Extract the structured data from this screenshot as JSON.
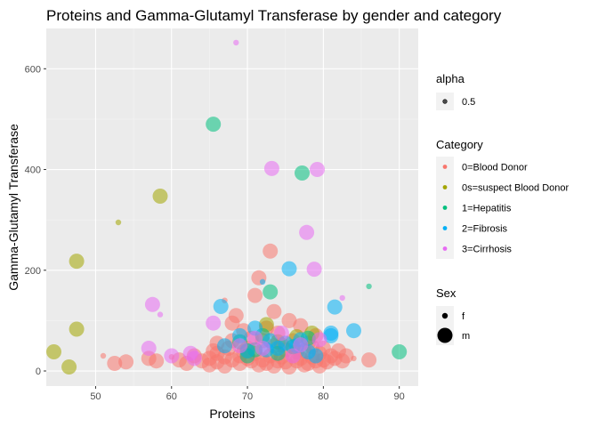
{
  "chart_data": {
    "type": "scatter",
    "title": "Proteins and Gamma-Glutamyl Transferase by gender and category",
    "xlabel": "Proteins",
    "ylabel": "Gamma-Glutamyl Transferase",
    "xlim": [
      43.5,
      92.5
    ],
    "ylim": [
      -30,
      680
    ],
    "x_ticks": [
      50,
      60,
      70,
      80,
      90
    ],
    "y_ticks": [
      0,
      200,
      400,
      600
    ],
    "x_tick_labels": [
      "50",
      "60",
      "70",
      "80",
      "90"
    ],
    "y_tick_labels": [
      "0",
      "200",
      "400",
      "600"
    ],
    "grid": true,
    "legends": {
      "alpha": {
        "title": "alpha",
        "entries": [
          "0.5"
        ]
      },
      "category": {
        "title": "Category",
        "entries": [
          {
            "label": "0=Blood Donor",
            "color": "#F8766D"
          },
          {
            "label": "0s=suspect Blood Donor",
            "color": "#A3A500"
          },
          {
            "label": "1=Hepatitis",
            "color": "#00BF7D"
          },
          {
            "label": "2=Fibrosis",
            "color": "#00B0F6"
          },
          {
            "label": "3=Cirrhosis",
            "color": "#E76BF3"
          }
        ]
      },
      "sex": {
        "title": "Sex",
        "entries": [
          "f",
          "m"
        ]
      }
    },
    "series": [
      {
        "category": "0=Blood Donor",
        "color": "#F8766D",
        "points": [
          [
            51,
            30,
            "f"
          ],
          [
            52.5,
            15,
            "m"
          ],
          [
            54,
            18,
            "m"
          ],
          [
            57,
            25,
            "m"
          ],
          [
            58,
            20,
            "m"
          ],
          [
            60,
            28,
            "f"
          ],
          [
            61,
            22,
            "m"
          ],
          [
            62,
            15,
            "m"
          ],
          [
            63,
            30,
            "m"
          ],
          [
            64,
            20,
            "m"
          ],
          [
            65,
            25,
            "m"
          ],
          [
            65,
            12,
            "m"
          ],
          [
            66,
            35,
            "m"
          ],
          [
            66,
            18,
            "m"
          ],
          [
            67,
            28,
            "m"
          ],
          [
            67,
            140,
            "f"
          ],
          [
            67.5,
            45,
            "m"
          ],
          [
            68,
            22,
            "m"
          ],
          [
            68,
            60,
            "m"
          ],
          [
            68.5,
            110,
            "m"
          ],
          [
            69,
            30,
            "m"
          ],
          [
            69,
            15,
            "m"
          ],
          [
            69.5,
            80,
            "m"
          ],
          [
            70,
            25,
            "m"
          ],
          [
            70,
            45,
            "m"
          ],
          [
            70.5,
            20,
            "m"
          ],
          [
            71,
            150,
            "m"
          ],
          [
            71,
            35,
            "m"
          ],
          [
            71.5,
            185,
            "m"
          ],
          [
            72,
            22,
            "m"
          ],
          [
            72,
            60,
            "m"
          ],
          [
            72.5,
            15,
            "m"
          ],
          [
            73,
            238,
            "m"
          ],
          [
            73,
            30,
            "m"
          ],
          [
            73.5,
            50,
            "m"
          ],
          [
            73.5,
            118,
            "m"
          ],
          [
            74,
            20,
            "m"
          ],
          [
            74,
            75,
            "m"
          ],
          [
            74.5,
            28,
            "m"
          ],
          [
            75,
            42,
            "m"
          ],
          [
            75,
            18,
            "m"
          ],
          [
            75.5,
            100,
            "m"
          ],
          [
            76,
            30,
            "m"
          ],
          [
            76,
            60,
            "m"
          ],
          [
            76.5,
            20,
            "m"
          ],
          [
            77,
            90,
            "m"
          ],
          [
            77,
            25,
            "m"
          ],
          [
            77.5,
            40,
            "m"
          ],
          [
            78,
            15,
            "m"
          ],
          [
            78,
            55,
            "m"
          ],
          [
            78.5,
            28,
            "m"
          ],
          [
            79,
            20,
            "m"
          ],
          [
            79,
            70,
            "m"
          ],
          [
            79.5,
            35,
            "m"
          ],
          [
            80,
            22,
            "m"
          ],
          [
            80,
            45,
            "m"
          ],
          [
            80.5,
            18,
            "m"
          ],
          [
            81,
            30,
            "m"
          ],
          [
            81.5,
            25,
            "m"
          ],
          [
            82,
            40,
            "m"
          ],
          [
            82.5,
            20,
            "m"
          ],
          [
            83,
            30,
            "m"
          ],
          [
            84,
            25,
            "f"
          ],
          [
            86,
            22,
            "m"
          ],
          [
            66,
            55,
            "m"
          ],
          [
            68,
            95,
            "m"
          ],
          [
            70.5,
            65,
            "m"
          ],
          [
            72.5,
            85,
            "m"
          ],
          [
            74.5,
            52,
            "m"
          ],
          [
            76.5,
            38,
            "m"
          ],
          [
            78.5,
            48,
            "m"
          ],
          [
            69.5,
            38,
            "m"
          ],
          [
            71.5,
            12,
            "m"
          ],
          [
            73.5,
            10,
            "m"
          ],
          [
            75.5,
            8,
            "m"
          ],
          [
            77.5,
            12,
            "m"
          ],
          [
            79.5,
            10,
            "m"
          ],
          [
            67,
            10,
            "m"
          ],
          [
            65.5,
            40,
            "m"
          ]
        ]
      },
      {
        "category": "0s=suspect Blood Donor",
        "color": "#A3A500",
        "points": [
          [
            44.5,
            38,
            "m"
          ],
          [
            46.5,
            8,
            "m"
          ],
          [
            47.5,
            218,
            "m"
          ],
          [
            47.5,
            83,
            "m"
          ],
          [
            53,
            295,
            "f"
          ],
          [
            58.5,
            347,
            "m"
          ],
          [
            70,
            40,
            "m"
          ],
          [
            72.5,
            92,
            "m"
          ],
          [
            74,
            58,
            "m"
          ],
          [
            76.5,
            68,
            "m"
          ],
          [
            78.5,
            75,
            "m"
          ]
        ]
      },
      {
        "category": "1=Hepatitis",
        "color": "#00BF7D",
        "points": [
          [
            65.5,
            490,
            "m"
          ],
          [
            77.2,
            393,
            "m"
          ],
          [
            73,
            157,
            "m"
          ],
          [
            86,
            168,
            "f"
          ],
          [
            90,
            38,
            "m"
          ],
          [
            69,
            58,
            "m"
          ],
          [
            71,
            42,
            "m"
          ],
          [
            72,
            70,
            "m"
          ],
          [
            74,
            35,
            "m"
          ],
          [
            76,
            48,
            "m"
          ],
          [
            78,
            65,
            "m"
          ],
          [
            70,
            30,
            "m"
          ]
        ]
      },
      {
        "category": "2=Fibrosis",
        "color": "#00B0F6",
        "points": [
          [
            75.5,
            203,
            "m"
          ],
          [
            72,
            177,
            "f"
          ],
          [
            66.5,
            128,
            "m"
          ],
          [
            81.5,
            127,
            "m"
          ],
          [
            84,
            80,
            "m"
          ],
          [
            81,
            75,
            "m"
          ],
          [
            67,
            50,
            "m"
          ],
          [
            69,
            70,
            "m"
          ],
          [
            71,
            85,
            "m"
          ],
          [
            73,
            60,
            "m"
          ],
          [
            75,
            55,
            "m"
          ],
          [
            77,
            62,
            "m"
          ],
          [
            79,
            30,
            "m"
          ],
          [
            81,
            70,
            "m"
          ],
          [
            70,
            40,
            "m"
          ],
          [
            74,
            45,
            "m"
          ],
          [
            76.5,
            50,
            "m"
          ],
          [
            72.5,
            42,
            "m"
          ],
          [
            78,
            38,
            "m"
          ]
        ]
      },
      {
        "category": "3=Cirrhosis",
        "color": "#E76BF3",
        "points": [
          [
            68.5,
            652,
            "f"
          ],
          [
            73.2,
            402,
            "m"
          ],
          [
            79.2,
            400,
            "m"
          ],
          [
            77.8,
            275,
            "m"
          ],
          [
            78.8,
            202,
            "m"
          ],
          [
            57.5,
            132,
            "m"
          ],
          [
            58.5,
            112,
            "f"
          ],
          [
            57,
            45,
            "m"
          ],
          [
            60,
            30,
            "m"
          ],
          [
            62.5,
            35,
            "m"
          ],
          [
            65.5,
            95,
            "m"
          ],
          [
            82.5,
            145,
            "f"
          ],
          [
            69,
            50,
            "m"
          ],
          [
            71,
            65,
            "m"
          ],
          [
            74.5,
            75,
            "m"
          ],
          [
            77,
            52,
            "m"
          ],
          [
            79.5,
            62,
            "m"
          ],
          [
            72,
            45,
            "m"
          ],
          [
            63,
            25,
            "m"
          ],
          [
            76,
            30,
            "m"
          ]
        ]
      }
    ]
  }
}
